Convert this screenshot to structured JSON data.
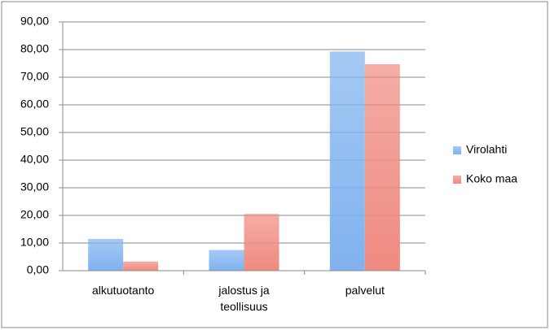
{
  "chart_data": {
    "type": "bar",
    "categories": [
      "alkutuotanto",
      "jalostus ja teollisuus",
      "palvelut"
    ],
    "series": [
      {
        "name": "Virolahti",
        "color": "#7fb2ef",
        "values": [
          11.5,
          7.5,
          79.3
        ]
      },
      {
        "name": "Koko maa",
        "color": "#ef8a80",
        "values": [
          3.3,
          20.5,
          74.7
        ]
      }
    ],
    "ylim": [
      0,
      90
    ],
    "yticks": [
      {
        "value": 0,
        "label": "0,00"
      },
      {
        "value": 10,
        "label": "10,00"
      },
      {
        "value": 20,
        "label": "20,00"
      },
      {
        "value": 30,
        "label": "30,00"
      },
      {
        "value": 40,
        "label": "40,00"
      },
      {
        "value": 50,
        "label": "50,00"
      },
      {
        "value": 60,
        "label": "60,00"
      },
      {
        "value": 70,
        "label": "70,00"
      },
      {
        "value": 80,
        "label": "80,00"
      },
      {
        "value": 90,
        "label": "90,00"
      }
    ],
    "grid": true,
    "legend": "right"
  }
}
